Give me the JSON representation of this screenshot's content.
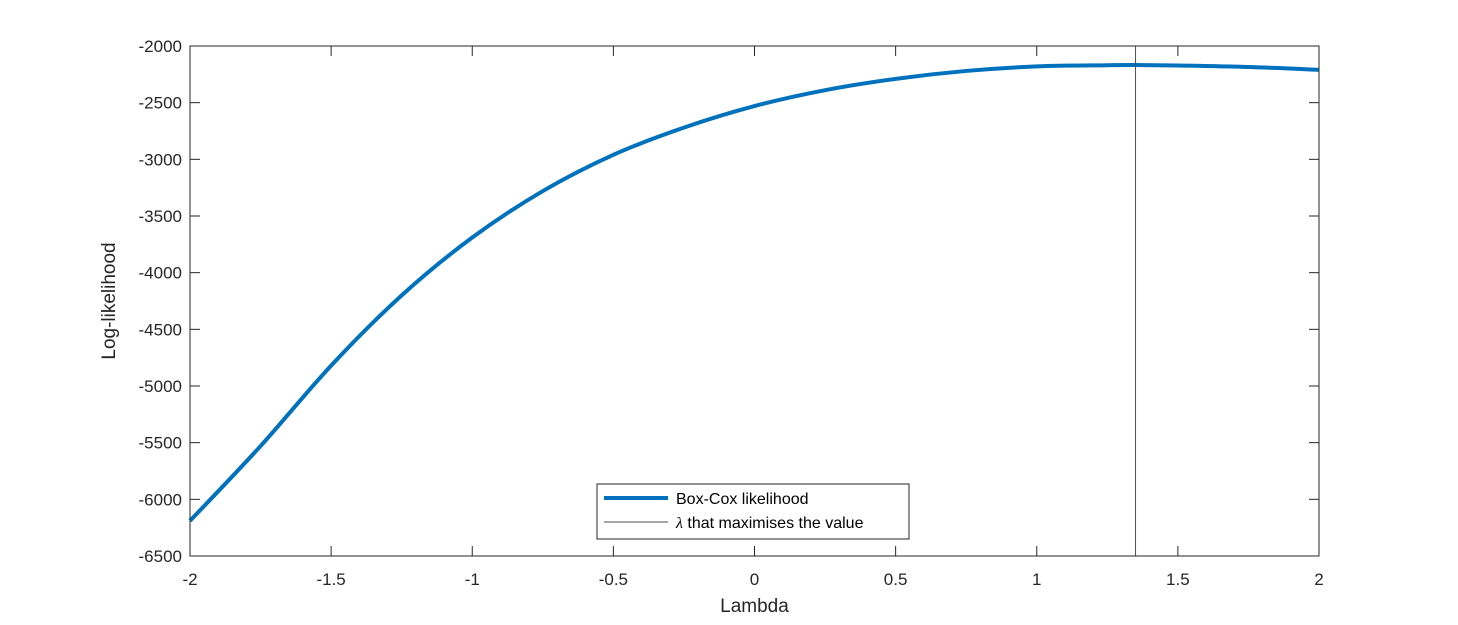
{
  "chart_data": {
    "type": "line",
    "xlabel": "Lambda",
    "ylabel": "Log-likelihood",
    "xlim": [
      -2,
      2
    ],
    "ylim": [
      -6500,
      -2000
    ],
    "xticks": [
      "-2",
      "-1.5",
      "-1",
      "-0.5",
      "0",
      "0.5",
      "1",
      "1.5",
      "2"
    ],
    "yticks": [
      "-2000",
      "-2500",
      "-3000",
      "-3500",
      "-4000",
      "-4500",
      "-5000",
      "-5500",
      "-6000",
      "-6500"
    ],
    "grid": false,
    "legend_position": "bottom-center",
    "series": [
      {
        "name": "Box-Cox likelihood",
        "color": "#0072BD",
        "x": [
          -2,
          -1.75,
          -1.5,
          -1.25,
          -1,
          -0.75,
          -0.5,
          -0.25,
          0,
          0.25,
          0.5,
          0.75,
          1,
          1.25,
          1.35,
          1.5,
          1.75,
          2
        ],
        "y": [
          -6190,
          -5530,
          -4820,
          -4200,
          -3690,
          -3280,
          -2960,
          -2720,
          -2530,
          -2390,
          -2290,
          -2220,
          -2180,
          -2170,
          -2168,
          -2172,
          -2185,
          -2210
        ]
      }
    ],
    "reference_line": {
      "name_prefix": "λ",
      "name_suffix": " that maximises the value",
      "x": 1.35,
      "color": "#4d4d4d"
    }
  }
}
